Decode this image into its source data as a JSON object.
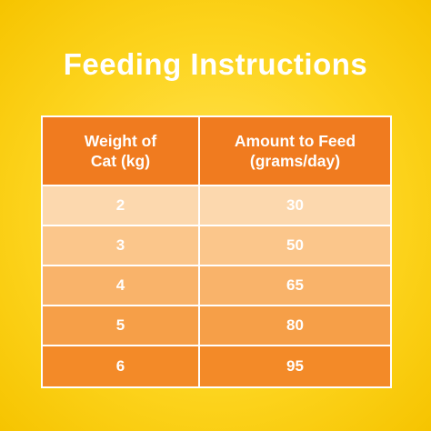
{
  "title": "Feeding Instructions",
  "table": {
    "header": [
      [
        "Weight of",
        "Cat (kg)"
      ],
      [
        "Amount to Feed",
        "(grams/day)"
      ]
    ],
    "rows": [
      [
        2,
        30
      ],
      [
        3,
        50
      ],
      [
        4,
        65
      ],
      [
        5,
        80
      ],
      [
        6,
        95
      ]
    ]
  }
}
